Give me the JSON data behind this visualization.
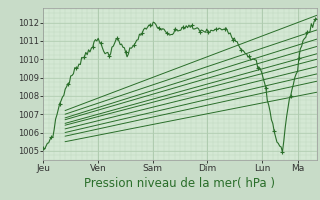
{
  "bg_color": "#c8dcc8",
  "plot_bg_color": "#d4e8d4",
  "grid_color_major": "#b0ccb0",
  "grid_color_minor": "#c0d8c0",
  "line_color": "#2a6e2a",
  "xlabel": "Pression niveau de la mer( hPa )",
  "xlabel_fontsize": 8.5,
  "ylim": [
    1004.5,
    1012.8
  ],
  "yticks": [
    1005,
    1006,
    1007,
    1008,
    1009,
    1010,
    1011,
    1012
  ],
  "day_labels": [
    "Jeu",
    "Ven",
    "Sam",
    "Dim",
    "Lun",
    "Ma"
  ],
  "day_positions": [
    0,
    0.2,
    0.4,
    0.6,
    0.8,
    0.93
  ],
  "num_points": 200
}
